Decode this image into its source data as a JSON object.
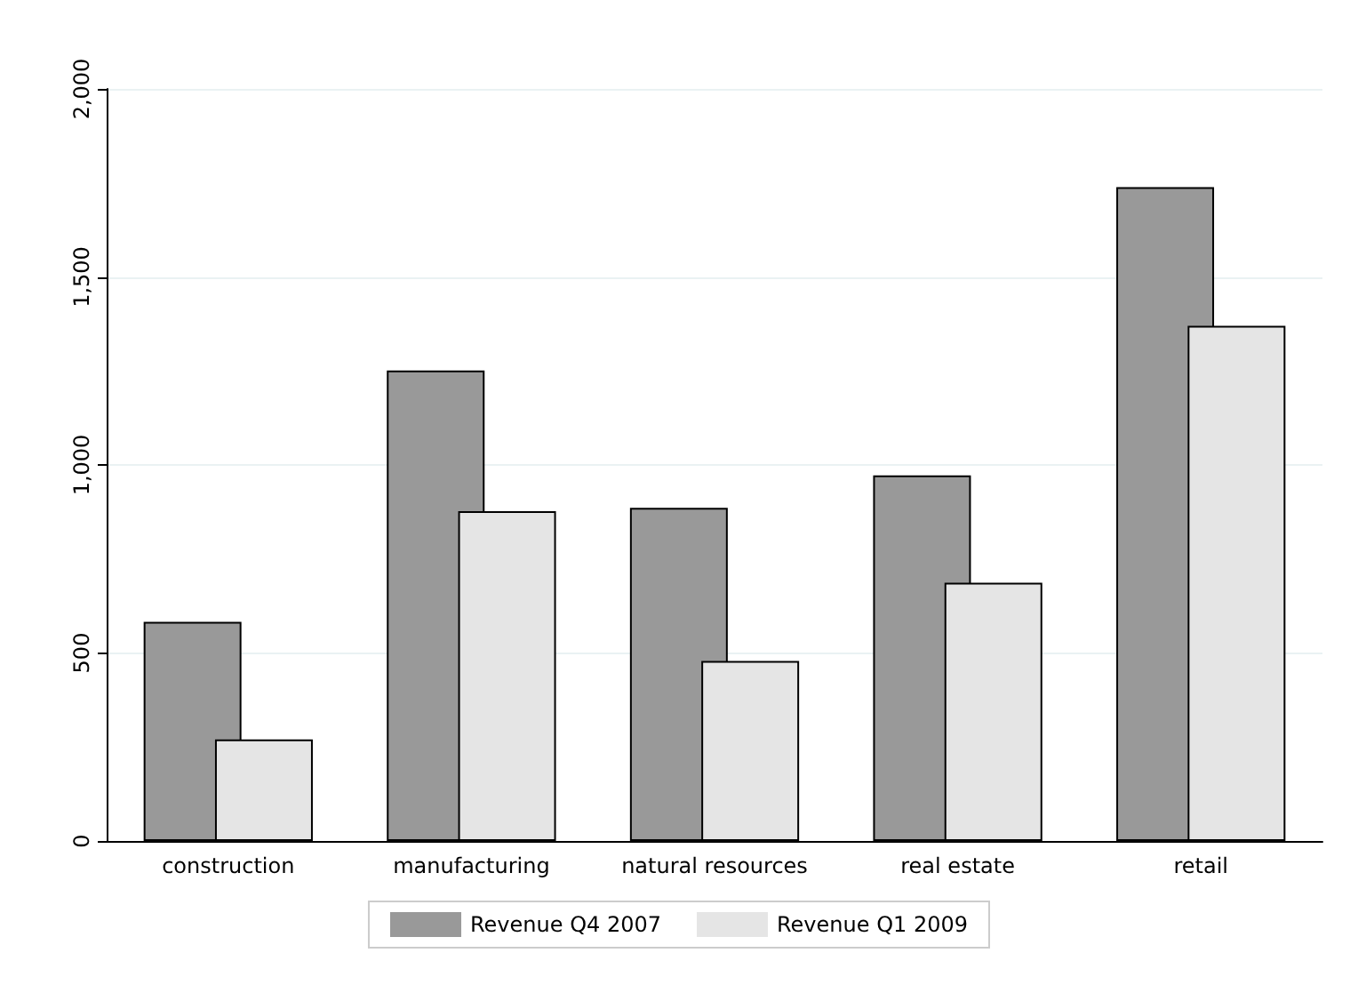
{
  "chart_data": {
    "type": "bar",
    "categories": [
      "construction",
      "manufacturing",
      "natural resources",
      "real estate",
      "retail"
    ],
    "series": [
      {
        "name": "Revenue Q4 2007",
        "color": "#999999",
        "values": [
          583,
          1251,
          886,
          972,
          1739
        ]
      },
      {
        "name": "Revenue Q1 2009",
        "color": "#e5e5e5",
        "values": [
          270,
          877,
          479,
          687,
          1370
        ]
      }
    ],
    "ylim": [
      0,
      2000
    ],
    "yticks": [
      0,
      {
        "value": 500,
        "label": "500"
      },
      {
        "value": 1000,
        "label": "1,000"
      },
      {
        "value": 1500,
        "label": "1,500"
      },
      {
        "value": 2000,
        "label": "2,000"
      }
    ],
    "grid": "y",
    "legend": "bottom"
  }
}
